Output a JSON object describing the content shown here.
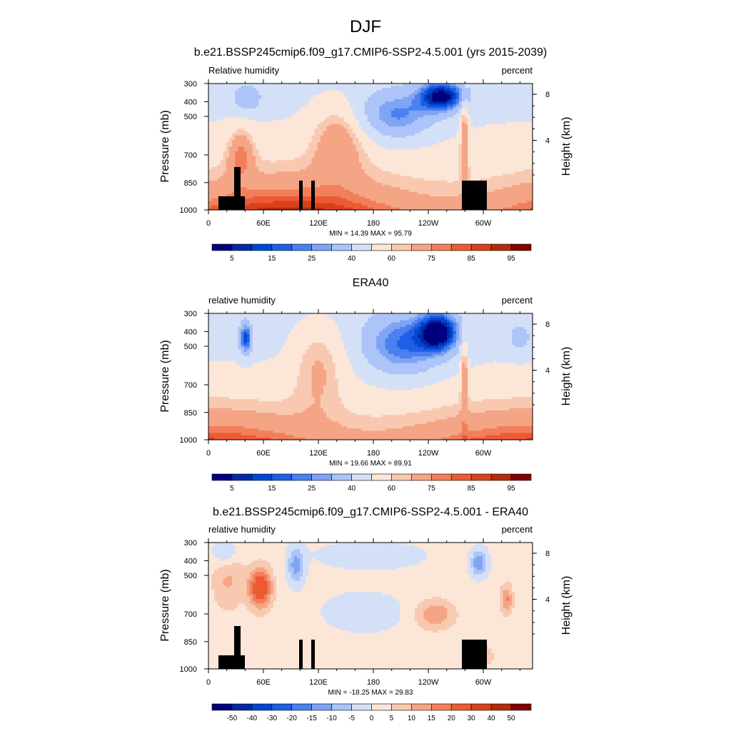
{
  "title": "DJF",
  "chart_data": [
    {
      "type": "heatmap",
      "title": "b.e21.BSSP245cmip6.f09_g17.CMIP6-SSP2-4.5.001 (yrs 2015-2039)",
      "left_label": "Relative humidity",
      "right_label": "percent",
      "ylabel": "Pressure (mb)",
      "ylabel_right": "Height (km)",
      "x_ticks": [
        "0",
        "60E",
        "120E",
        "180",
        "120W",
        "60W"
      ],
      "y_ticks": [
        "300",
        "400",
        "500",
        "700",
        "850",
        "1000"
      ],
      "y_ticks_right": [
        "8",
        "4"
      ],
      "min_max": "MIN =  14.39  MAX =  95.79",
      "colorbar_labels": [
        "5",
        "15",
        "25",
        "40",
        "60",
        "75",
        "85",
        "95"
      ],
      "xlim": [
        0,
        360
      ],
      "ylim": [
        1000,
        300
      ],
      "has_terrain": true
    },
    {
      "type": "heatmap",
      "title": "ERA40",
      "left_label": "relative humidity",
      "right_label": "percent",
      "ylabel": "Pressure (mb)",
      "ylabel_right": "Height (km)",
      "x_ticks": [
        "0",
        "60E",
        "120E",
        "180",
        "120W",
        "60W"
      ],
      "y_ticks": [
        "300",
        "400",
        "500",
        "700",
        "850",
        "1000"
      ],
      "y_ticks_right": [
        "8",
        "4"
      ],
      "min_max": "MIN =  19.66  MAX =  89.91",
      "colorbar_labels": [
        "5",
        "15",
        "25",
        "40",
        "60",
        "75",
        "85",
        "95"
      ],
      "xlim": [
        0,
        360
      ],
      "ylim": [
        1000,
        300
      ],
      "has_terrain": false
    },
    {
      "type": "heatmap",
      "title": "b.e21.BSSP245cmip6.f09_g17.CMIP6-SSP2-4.5.001 - ERA40",
      "left_label": "relative humidity",
      "right_label": "percent",
      "ylabel": "Pressure (mb)",
      "ylabel_right": "Height (km)",
      "x_ticks": [
        "0",
        "60E",
        "120E",
        "180",
        "120W",
        "60W"
      ],
      "y_ticks": [
        "300",
        "400",
        "500",
        "700",
        "850",
        "1000"
      ],
      "y_ticks_right": [
        "8",
        "4"
      ],
      "min_max": "MIN = -18.25  MAX =  29.83",
      "colorbar_labels": [
        "-50",
        "-40",
        "-30",
        "-20",
        "-15",
        "-10",
        "-5",
        "0",
        "5",
        "10",
        "15",
        "20",
        "30",
        "40",
        "50"
      ],
      "xlim": [
        0,
        360
      ],
      "ylim": [
        1000,
        300
      ],
      "has_terrain": true
    }
  ],
  "colors": {
    "scale16": [
      "#00007f",
      "#002aa8",
      "#0047d0",
      "#1f5fe6",
      "#4a80ef",
      "#7fa4f4",
      "#acc4f7",
      "#d3e0f7",
      "#fbe6d8",
      "#f8c9b0",
      "#f4a585",
      "#f27f5b",
      "#ec5b35",
      "#d9401c",
      "#b72a0e",
      "#820000"
    ]
  }
}
